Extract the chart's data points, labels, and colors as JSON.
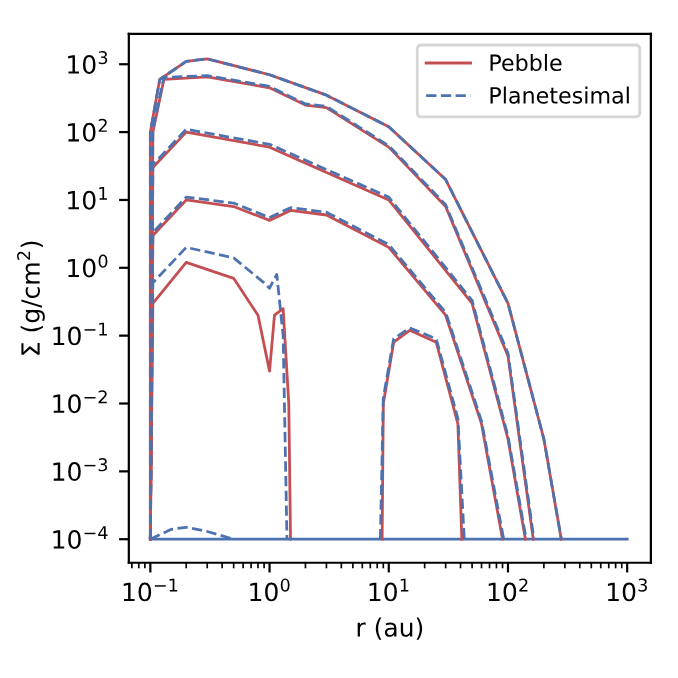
{
  "chart_data": {
    "type": "line",
    "xlabel": "r (au)",
    "ylabel": "Σ (g/cm$^{2}$)",
    "log": "xy",
    "legend": "top right",
    "grid": false,
    "xlim": [
      0.066,
      1580
    ],
    "ylim": [
      4.5e-05,
      2800
    ],
    "xticks": [
      {
        "value": 0.1,
        "label": "10$^{−1}$"
      },
      {
        "value": 1,
        "label": "10$^{0}$"
      },
      {
        "value": 10,
        "label": "10$^{1}$"
      },
      {
        "value": 100,
        "label": "10$^{2}$"
      },
      {
        "value": 1000,
        "label": "10$^{3}$"
      }
    ],
    "yticks": [
      {
        "value": 0.0001,
        "label": "10$^{−4}$"
      },
      {
        "value": 0.001,
        "label": "10$^{−3}$"
      },
      {
        "value": 0.01,
        "label": "10$^{−2}$"
      },
      {
        "value": 0.1,
        "label": "10$^{−1}$"
      },
      {
        "value": 1,
        "label": "10$^{0}$"
      },
      {
        "value": 10,
        "label": "10$^{1}$"
      },
      {
        "value": 100,
        "label": "10$^{2}$"
      },
      {
        "value": 1000,
        "label": "10$^{3}$"
      }
    ],
    "series": [
      {
        "name": "Pebble",
        "color": "#c44e52",
        "line_style": "solid",
        "x": [
          0.1,
          0.105,
          0.2,
          0.5,
          0.8,
          1,
          1.1,
          1.3,
          1.45,
          1.5
        ],
        "values": [
          0.0001,
          0.3,
          1.2,
          0.7,
          0.2,
          0.03,
          0.2,
          0.25,
          0.01,
          0.0001
        ]
      },
      {
        "name": "Planetesimal",
        "color": "#4c72b0",
        "line_style": "dashed",
        "x": [
          0.1,
          0.105,
          0.2,
          0.5,
          0.9,
          1,
          1.15,
          1.3,
          1.4
        ],
        "values": [
          0.0001,
          0.6,
          2,
          1.4,
          0.6,
          0.5,
          0.8,
          0.1,
          0.0001
        ]
      },
      {
        "color": "#4c72b0",
        "line_style": "solid",
        "x": [
          0.1,
          1000
        ],
        "values": [
          0.0001,
          0.0001
        ]
      },
      {
        "color": "#4c72b0",
        "line_style": "dashed",
        "x": [
          0.1,
          0.15,
          0.2,
          0.3,
          0.5
        ],
        "values": [
          0.0001,
          0.00014,
          0.00015,
          0.00013,
          0.0001
        ]
      },
      {
        "color": "#c44e52",
        "line_style": "solid",
        "x": [
          0.1,
          0.1,
          0.12,
          0.2,
          0.3,
          1,
          3,
          10,
          30,
          100,
          200,
          280
        ],
        "values": [
          0.0001,
          100,
          600,
          1100,
          1200,
          700,
          350,
          120,
          20,
          0.3,
          0.003,
          0.0001
        ]
      },
      {
        "color": "#4c72b0",
        "line_style": "dashed",
        "x": [
          0.1,
          0.1,
          0.12,
          0.2,
          0.3,
          1,
          3,
          10,
          30,
          100,
          200,
          280
        ],
        "values": [
          0.0001,
          100,
          600,
          1100,
          1200,
          700,
          350,
          120,
          20,
          0.3,
          0.003,
          0.0001
        ]
      },
      {
        "color": "#c44e52",
        "line_style": "solid",
        "x": [
          0.1,
          0.105,
          0.13,
          0.3,
          1,
          2,
          3,
          10,
          30,
          100,
          163
        ],
        "values": [
          0.0001,
          100,
          600,
          650,
          450,
          250,
          230,
          60,
          8,
          0.05,
          0.0001
        ]
      },
      {
        "color": "#4c72b0",
        "line_style": "dashed",
        "x": [
          0.1,
          0.105,
          0.13,
          0.3,
          1,
          2,
          3,
          10,
          30,
          100,
          165
        ],
        "values": [
          0.0001,
          110,
          640,
          680,
          470,
          260,
          240,
          63,
          8.5,
          0.055,
          0.0001
        ]
      },
      {
        "color": "#c44e52",
        "line_style": "solid",
        "x": [
          0.1,
          0.105,
          0.2,
          1,
          10,
          50,
          100,
          140
        ],
        "values": [
          0.0001,
          30,
          100,
          60,
          10,
          0.3,
          0.003,
          0.0001
        ]
      },
      {
        "color": "#4c72b0",
        "line_style": "dashed",
        "x": [
          0.1,
          0.105,
          0.2,
          1,
          10,
          50,
          100,
          142
        ],
        "values": [
          0.0001,
          33,
          110,
          66,
          11,
          0.33,
          0.0033,
          0.0001
        ]
      },
      {
        "color": "#c44e52",
        "line_style": "solid",
        "x": [
          0.1,
          0.105,
          0.2,
          0.5,
          1,
          1.5,
          3,
          10,
          30,
          60,
          90
        ],
        "values": [
          0.0001,
          3,
          10,
          8,
          5,
          7,
          6,
          2,
          0.2,
          0.005,
          0.0001
        ]
      },
      {
        "color": "#4c72b0",
        "line_style": "dashed",
        "x": [
          0.1,
          0.105,
          0.2,
          0.5,
          1,
          1.5,
          3,
          10,
          30,
          60,
          92
        ],
        "values": [
          0.0001,
          3.3,
          11,
          9,
          5.5,
          7.7,
          6.6,
          2.2,
          0.22,
          0.0055,
          0.0001
        ]
      },
      {
        "color": "#c44e52",
        "line_style": "solid",
        "x": [
          8.8,
          9,
          11,
          15,
          25,
          38,
          41
        ],
        "values": [
          0.0001,
          0.01,
          0.08,
          0.12,
          0.08,
          0.005,
          0.0001
        ]
      },
      {
        "color": "#4c72b0",
        "line_style": "dashed",
        "x": [
          8.5,
          9,
          11,
          15,
          25,
          38,
          43
        ],
        "values": [
          0.0001,
          0.012,
          0.09,
          0.13,
          0.09,
          0.006,
          0.0001
        ]
      }
    ]
  }
}
